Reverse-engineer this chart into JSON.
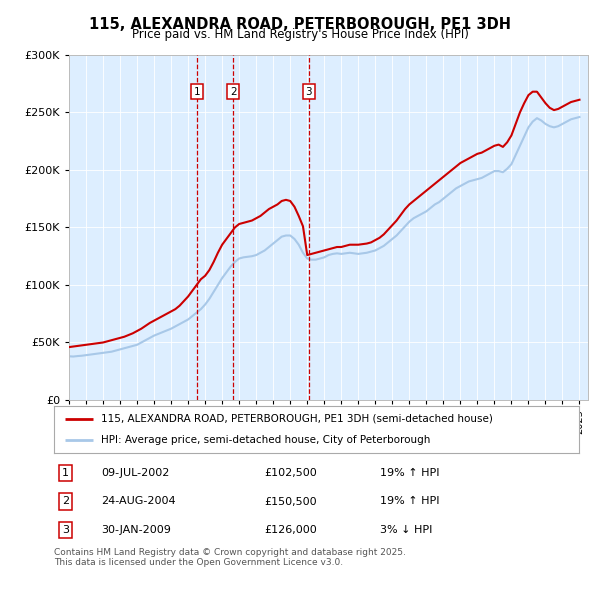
{
  "title": "115, ALEXANDRA ROAD, PETERBOROUGH, PE1 3DH",
  "subtitle": "Price paid vs. HM Land Registry's House Price Index (HPI)",
  "legend_line1": "115, ALEXANDRA ROAD, PETERBOROUGH, PE1 3DH (semi-detached house)",
  "legend_line2": "HPI: Average price, semi-detached house, City of Peterborough",
  "footer": "Contains HM Land Registry data © Crown copyright and database right 2025.\nThis data is licensed under the Open Government Licence v3.0.",
  "transactions": [
    {
      "num": 1,
      "date": "09-JUL-2002",
      "price": "£102,500",
      "change": "19% ↑ HPI"
    },
    {
      "num": 2,
      "date": "24-AUG-2004",
      "price": "£150,500",
      "change": "19% ↑ HPI"
    },
    {
      "num": 3,
      "date": "30-JAN-2009",
      "price": "£126,000",
      "change": "3% ↓ HPI"
    }
  ],
  "transaction_years": [
    2002.52,
    2004.65,
    2009.08
  ],
  "transaction_prices": [
    102500,
    150500,
    126000
  ],
  "ylim": [
    0,
    300000
  ],
  "xlim_start": 1995.0,
  "xlim_end": 2025.5,
  "red_color": "#cc0000",
  "blue_color": "#a8c8e8",
  "plot_bg_color": "#ddeeff",
  "hpi_years": [
    1995.0,
    1995.25,
    1995.5,
    1995.75,
    1996.0,
    1996.25,
    1996.5,
    1996.75,
    1997.0,
    1997.25,
    1997.5,
    1997.75,
    1998.0,
    1998.25,
    1998.5,
    1998.75,
    1999.0,
    1999.25,
    1999.5,
    1999.75,
    2000.0,
    2000.25,
    2000.5,
    2000.75,
    2001.0,
    2001.25,
    2001.5,
    2001.75,
    2002.0,
    2002.25,
    2002.5,
    2002.75,
    2003.0,
    2003.25,
    2003.5,
    2003.75,
    2004.0,
    2004.25,
    2004.5,
    2004.75,
    2005.0,
    2005.25,
    2005.5,
    2005.75,
    2006.0,
    2006.25,
    2006.5,
    2006.75,
    2007.0,
    2007.25,
    2007.5,
    2007.75,
    2008.0,
    2008.25,
    2008.5,
    2008.75,
    2009.0,
    2009.25,
    2009.5,
    2009.75,
    2010.0,
    2010.25,
    2010.5,
    2010.75,
    2011.0,
    2011.25,
    2011.5,
    2011.75,
    2012.0,
    2012.25,
    2012.5,
    2012.75,
    2013.0,
    2013.25,
    2013.5,
    2013.75,
    2014.0,
    2014.25,
    2014.5,
    2014.75,
    2015.0,
    2015.25,
    2015.5,
    2015.75,
    2016.0,
    2016.25,
    2016.5,
    2016.75,
    2017.0,
    2017.25,
    2017.5,
    2017.75,
    2018.0,
    2018.25,
    2018.5,
    2018.75,
    2019.0,
    2019.25,
    2019.5,
    2019.75,
    2020.0,
    2020.25,
    2020.5,
    2020.75,
    2021.0,
    2021.25,
    2021.5,
    2021.75,
    2022.0,
    2022.25,
    2022.5,
    2022.75,
    2023.0,
    2023.25,
    2023.5,
    2023.75,
    2024.0,
    2024.25,
    2024.5,
    2024.75,
    2025.0
  ],
  "hpi_values": [
    38000,
    37800,
    38200,
    38500,
    39000,
    39500,
    40000,
    40500,
    41000,
    41500,
    42000,
    43000,
    44000,
    45000,
    46000,
    47000,
    48000,
    50000,
    52000,
    54000,
    56000,
    57500,
    59000,
    60500,
    62000,
    64000,
    66000,
    68000,
    70000,
    73000,
    76000,
    79000,
    83000,
    88000,
    94000,
    100000,
    106000,
    111000,
    116000,
    120000,
    123000,
    124000,
    124500,
    125000,
    126000,
    128000,
    130000,
    133000,
    136000,
    139000,
    142000,
    143000,
    143000,
    140000,
    135000,
    128000,
    123000,
    122000,
    122000,
    123000,
    124000,
    126000,
    127000,
    127500,
    127000,
    127500,
    128000,
    127500,
    127000,
    127500,
    128000,
    129000,
    130000,
    132000,
    134000,
    137000,
    140000,
    143000,
    147000,
    151000,
    155000,
    158000,
    160000,
    162000,
    164000,
    167000,
    170000,
    172000,
    175000,
    178000,
    181000,
    184000,
    186000,
    188000,
    190000,
    191000,
    192000,
    193000,
    195000,
    197000,
    199000,
    199000,
    198000,
    201000,
    205000,
    213000,
    221000,
    229000,
    237000,
    242000,
    245000,
    243000,
    240000,
    238000,
    237000,
    238000,
    240000,
    242000,
    244000,
    245000,
    246000
  ],
  "red_years": [
    1995.0,
    1995.25,
    1995.5,
    1995.75,
    1996.0,
    1996.25,
    1996.5,
    1996.75,
    1997.0,
    1997.25,
    1997.5,
    1997.75,
    1998.0,
    1998.25,
    1998.5,
    1998.75,
    1999.0,
    1999.25,
    1999.5,
    1999.75,
    2000.0,
    2000.25,
    2000.5,
    2000.75,
    2001.0,
    2001.25,
    2001.5,
    2001.75,
    2002.0,
    2002.25,
    2002.5,
    2002.75,
    2003.0,
    2003.25,
    2003.5,
    2003.75,
    2004.0,
    2004.25,
    2004.5,
    2004.75,
    2005.0,
    2005.25,
    2005.5,
    2005.75,
    2006.0,
    2006.25,
    2006.5,
    2006.75,
    2007.0,
    2007.25,
    2007.5,
    2007.75,
    2008.0,
    2008.25,
    2008.5,
    2008.75,
    2009.0,
    2009.25,
    2009.5,
    2009.75,
    2010.0,
    2010.25,
    2010.5,
    2010.75,
    2011.0,
    2011.25,
    2011.5,
    2011.75,
    2012.0,
    2012.25,
    2012.5,
    2012.75,
    2013.0,
    2013.25,
    2013.5,
    2013.75,
    2014.0,
    2014.25,
    2014.5,
    2014.75,
    2015.0,
    2015.25,
    2015.5,
    2015.75,
    2016.0,
    2016.25,
    2016.5,
    2016.75,
    2017.0,
    2017.25,
    2017.5,
    2017.75,
    2018.0,
    2018.25,
    2018.5,
    2018.75,
    2019.0,
    2019.25,
    2019.5,
    2019.75,
    2020.0,
    2020.25,
    2020.5,
    2020.75,
    2021.0,
    2021.25,
    2021.5,
    2021.75,
    2022.0,
    2022.25,
    2022.5,
    2022.75,
    2023.0,
    2023.25,
    2023.5,
    2023.75,
    2024.0,
    2024.25,
    2024.5,
    2024.75,
    2025.0
  ],
  "red_values": [
    46000,
    46500,
    47000,
    47500,
    48000,
    48500,
    49000,
    49500,
    50000,
    51000,
    52000,
    53000,
    54000,
    55000,
    56500,
    58000,
    60000,
    62000,
    64500,
    67000,
    69000,
    71000,
    73000,
    75000,
    77000,
    79000,
    82000,
    86000,
    90000,
    95000,
    100000,
    105000,
    108000,
    113000,
    120000,
    128000,
    135000,
    140000,
    145000,
    150000,
    153000,
    154000,
    155000,
    156000,
    158000,
    160000,
    163000,
    166000,
    168000,
    170000,
    173000,
    174000,
    173000,
    168000,
    160000,
    151000,
    126000,
    127000,
    128000,
    129000,
    130000,
    131000,
    132000,
    133000,
    133000,
    134000,
    135000,
    135000,
    135000,
    135500,
    136000,
    137000,
    139000,
    141000,
    144000,
    148000,
    152000,
    156000,
    161000,
    166000,
    170000,
    173000,
    176000,
    179000,
    182000,
    185000,
    188000,
    191000,
    194000,
    197000,
    200000,
    203000,
    206000,
    208000,
    210000,
    212000,
    214000,
    215000,
    217000,
    219000,
    221000,
    222000,
    220000,
    224000,
    230000,
    240000,
    250000,
    258000,
    265000,
    268000,
    268000,
    263000,
    258000,
    254000,
    252000,
    253000,
    255000,
    257000,
    259000,
    260000,
    261000
  ]
}
